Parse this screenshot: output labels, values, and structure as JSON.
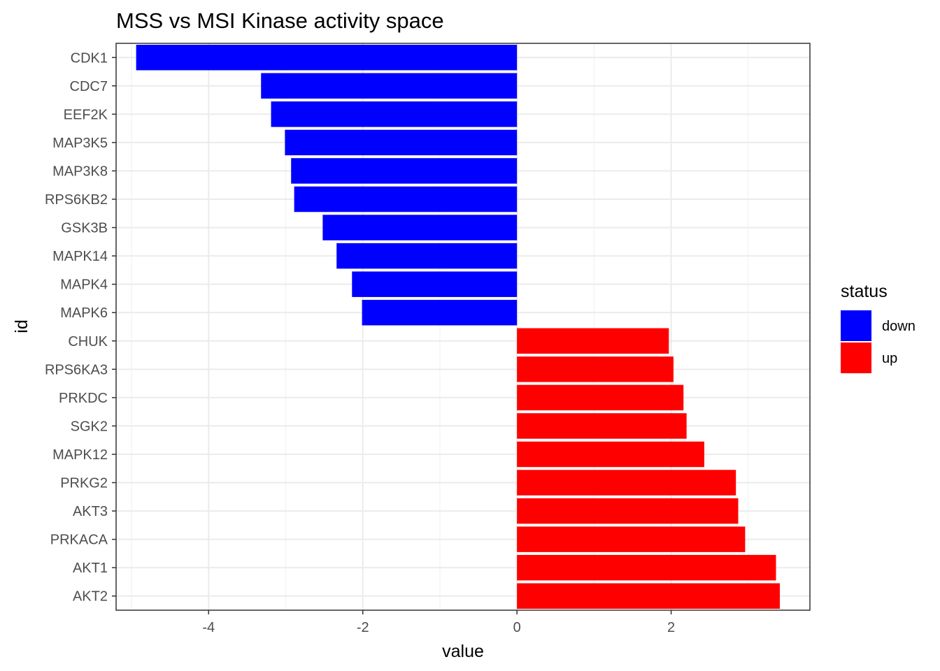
{
  "chart_data": {
    "type": "bar",
    "orientation": "horizontal",
    "title": "MSS vs MSI Kinase activity space",
    "xlabel": "value",
    "ylabel": "id",
    "xlim": [
      -5.2,
      3.8
    ],
    "xticks": [
      -4,
      -2,
      0,
      2
    ],
    "xtick_labels": [
      "-4",
      "-2",
      "0",
      "2"
    ],
    "grid": true,
    "legend": {
      "title": "status",
      "placement": "right",
      "entries": [
        {
          "label": "down",
          "color": "#0000ff"
        },
        {
          "label": "up",
          "color": "#ff0000"
        }
      ]
    },
    "categories": [
      "CDK1",
      "CDC7",
      "EEF2K",
      "MAP3K5",
      "MAP3K8",
      "RPS6KB2",
      "GSK3B",
      "MAPK14",
      "MAPK4",
      "MAPK6",
      "CHUK",
      "RPS6KA3",
      "PRKDC",
      "SGK2",
      "MAPK12",
      "PRKG2",
      "AKT3",
      "PRKACA",
      "AKT1",
      "AKT2"
    ],
    "values": [
      -4.94,
      -3.32,
      -3.19,
      -3.01,
      -2.93,
      -2.89,
      -2.52,
      -2.34,
      -2.14,
      -2.01,
      1.97,
      2.03,
      2.16,
      2.2,
      2.43,
      2.84,
      2.87,
      2.96,
      3.36,
      3.41
    ],
    "status": [
      "down",
      "down",
      "down",
      "down",
      "down",
      "down",
      "down",
      "down",
      "down",
      "down",
      "up",
      "up",
      "up",
      "up",
      "up",
      "up",
      "up",
      "up",
      "up",
      "up"
    ]
  }
}
